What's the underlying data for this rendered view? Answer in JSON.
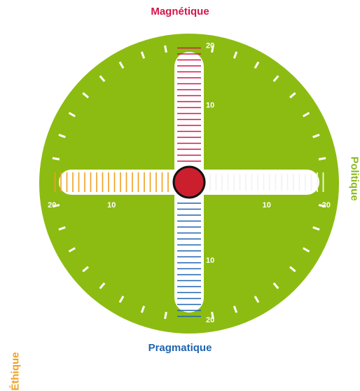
{
  "axes": {
    "top": {
      "label": "Magnétique",
      "color": "#d3164b"
    },
    "bottom": {
      "label": "Pragmatique",
      "color": "#1f64b0"
    },
    "left": {
      "label": "Éthique",
      "color": "#f0a01e"
    },
    "right": {
      "label": "Politique",
      "color": "#8ab81a"
    }
  },
  "scale": {
    "max": 20,
    "tick_labels": [
      "10",
      "20"
    ]
  },
  "colors": {
    "dial": "#8cbc12",
    "bar_bg": "#ffffff",
    "marker": "#cc1f2e",
    "marker_stroke": "#111111",
    "rim_ticks": "#ffffff",
    "tick_text": "#ffffff"
  },
  "marker": {
    "x": 0,
    "y": 0
  },
  "icons": {
    "center": "center-dot-icon"
  }
}
